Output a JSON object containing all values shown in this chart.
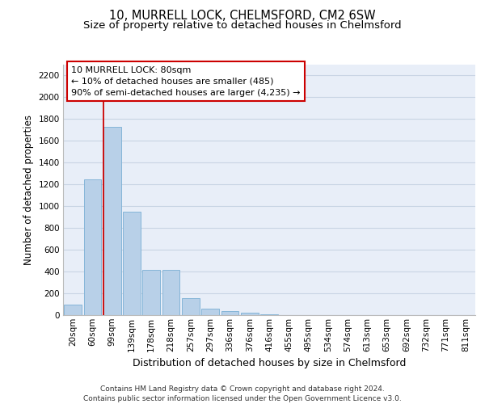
{
  "title1": "10, MURRELL LOCK, CHELMSFORD, CM2 6SW",
  "title2": "Size of property relative to detached houses in Chelmsford",
  "xlabel": "Distribution of detached houses by size in Chelmsford",
  "ylabel": "Number of detached properties",
  "categories": [
    "20sqm",
    "60sqm",
    "99sqm",
    "139sqm",
    "178sqm",
    "218sqm",
    "257sqm",
    "297sqm",
    "336sqm",
    "376sqm",
    "416sqm",
    "455sqm",
    "495sqm",
    "534sqm",
    "574sqm",
    "613sqm",
    "653sqm",
    "692sqm",
    "732sqm",
    "771sqm",
    "811sqm"
  ],
  "values": [
    100,
    1250,
    1730,
    950,
    415,
    415,
    155,
    60,
    35,
    20,
    5,
    3,
    2,
    1,
    1,
    0,
    0,
    0,
    0,
    0,
    0
  ],
  "bar_color": "#b8d0e8",
  "bar_edge_color": "#7aafd4",
  "grid_color": "#c8d4e4",
  "background_color": "#e8eef8",
  "vline_x": 1.55,
  "vline_color": "#cc0000",
  "annotation_text": "10 MURRELL LOCK: 80sqm\n← 10% of detached houses are smaller (485)\n90% of semi-detached houses are larger (4,235) →",
  "annotation_box_facecolor": "#ffffff",
  "annotation_box_edgecolor": "#cc0000",
  "footer_text": "Contains HM Land Registry data © Crown copyright and database right 2024.\nContains public sector information licensed under the Open Government Licence v3.0.",
  "ylim": [
    0,
    2300
  ],
  "yticks": [
    0,
    200,
    400,
    600,
    800,
    1000,
    1200,
    1400,
    1600,
    1800,
    2000,
    2200
  ],
  "title1_fontsize": 10.5,
  "title2_fontsize": 9.5,
  "xlabel_fontsize": 9,
  "ylabel_fontsize": 8.5,
  "tick_fontsize": 7.5,
  "annotation_fontsize": 8,
  "footer_fontsize": 6.5
}
